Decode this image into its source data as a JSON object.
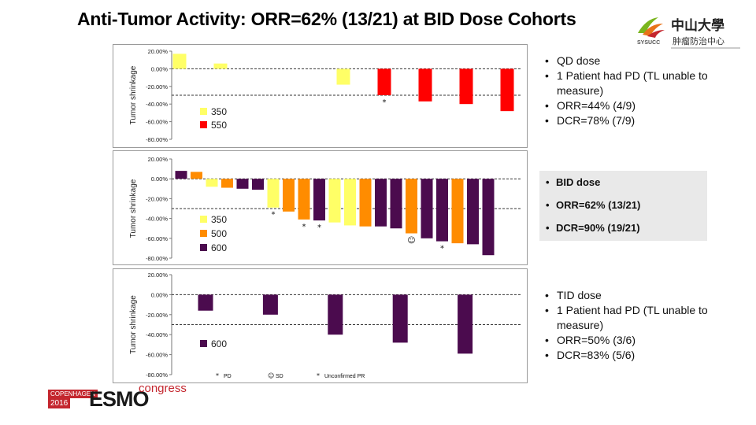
{
  "title": "Anti-Tumor Activity: ORR=62% (13/21) at BID Dose Cohorts",
  "logo": {
    "text_top": "中山大學",
    "text_sub": "肿瘤防治中心",
    "abbr": "SYSUCC"
  },
  "esmo": {
    "city": "COPENHAGEN",
    "year": "2016",
    "word": "ESMO",
    "congress": "congress"
  },
  "colors": {
    "yellow": "#ffff66",
    "red": "#ff0000",
    "orange": "#ff8c00",
    "purple": "#4b0b4e"
  },
  "qd_bullets": [
    "QD dose",
    "1 Patient had PD (TL unable to measure)",
    "ORR=44% (4/9)",
    "DCR=78% (7/9)"
  ],
  "bid_bullets": [
    "BID dose",
    "ORR=62% (13/21)",
    "DCR=90% (19/21)"
  ],
  "tid_bullets": [
    "TID dose",
    "1 Patient had PD (TL unable to measure)",
    "ORR=50% (3/6)",
    "DCR=83% (5/6)"
  ],
  "footnote": {
    "pd": "PD",
    "sd": "SD",
    "upr": "Unconfirmed PR"
  },
  "chart_data": [
    {
      "type": "bar",
      "ylabel": "Tumor shrinkage",
      "ylim": [
        -80,
        20
      ],
      "yticks": [
        "20.00%",
        "0.00%",
        "-20.00%",
        "-40.00%",
        "-60.00%",
        "-80.00%"
      ],
      "reference_lines": [
        0,
        -30
      ],
      "legend": [
        {
          "name": "350",
          "color": "#ffff66"
        },
        {
          "name": "550",
          "color": "#ff0000"
        }
      ],
      "bars": [
        {
          "value": 17,
          "group": "350",
          "slot": 1
        },
        {
          "value": 6,
          "group": "350",
          "slot": 2
        },
        {
          "value": -18,
          "group": "350",
          "slot": 5
        },
        {
          "value": -30,
          "group": "550",
          "slot": 6,
          "marker": "*"
        },
        {
          "value": -37,
          "group": "550",
          "slot": 7
        },
        {
          "value": -40,
          "group": "550",
          "slot": 8
        },
        {
          "value": -48,
          "group": "550",
          "slot": 9
        }
      ]
    },
    {
      "type": "bar",
      "ylabel": "Tumor shrinkage",
      "ylim": [
        -80,
        20
      ],
      "yticks": [
        "20.00%",
        "0.00%",
        "-20.00%",
        "-40.00%",
        "-60.00%",
        "-80.00%"
      ],
      "reference_lines": [
        0,
        -30
      ],
      "legend": [
        {
          "name": "350",
          "color": "#ffff66"
        },
        {
          "name": "500",
          "color": "#ff8c00"
        },
        {
          "name": "600",
          "color": "#4b0b4e"
        }
      ],
      "bars": [
        {
          "value": 8,
          "group": "600"
        },
        {
          "value": 7,
          "group": "500"
        },
        {
          "value": -8,
          "group": "350"
        },
        {
          "value": -9,
          "group": "500"
        },
        {
          "value": -10,
          "group": "600"
        },
        {
          "value": -11,
          "group": "600"
        },
        {
          "value": -29,
          "group": "350",
          "marker": "*"
        },
        {
          "value": -33,
          "group": "500"
        },
        {
          "value": -41,
          "group": "500",
          "marker": "*"
        },
        {
          "value": -42,
          "group": "600",
          "marker": "*"
        },
        {
          "value": -44,
          "group": "350"
        },
        {
          "value": -47,
          "group": "350"
        },
        {
          "value": -48,
          "group": "500"
        },
        {
          "value": -48,
          "group": "600"
        },
        {
          "value": -50,
          "group": "600"
        },
        {
          "value": -55,
          "group": "500",
          "marker": "@"
        },
        {
          "value": -60,
          "group": "600"
        },
        {
          "value": -63,
          "group": "600",
          "marker": "*"
        },
        {
          "value": -65,
          "group": "500"
        },
        {
          "value": -66,
          "group": "600"
        },
        {
          "value": -77,
          "group": "600"
        }
      ]
    },
    {
      "type": "bar",
      "ylabel": "Tumor shrinkage",
      "ylim": [
        -80,
        20
      ],
      "yticks": [
        "20.00%",
        "0.00%",
        "-20.00%",
        "-40.00%",
        "-60.00%",
        "-80.00%"
      ],
      "reference_lines": [
        0,
        -30
      ],
      "legend": [
        {
          "name": "600",
          "color": "#4b0b4e"
        }
      ],
      "bars": [
        {
          "value": -16,
          "group": "600",
          "slot": 1
        },
        {
          "value": -20,
          "group": "600",
          "slot": 3
        },
        {
          "value": -40,
          "group": "600",
          "slot": 5
        },
        {
          "value": -48,
          "group": "600",
          "slot": 7
        },
        {
          "value": -59,
          "group": "600",
          "slot": 9
        }
      ]
    }
  ]
}
